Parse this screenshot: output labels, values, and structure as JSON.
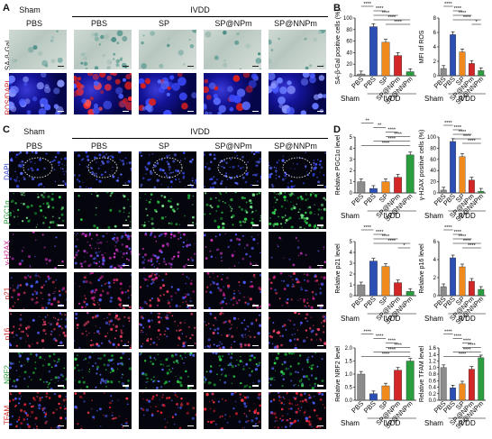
{
  "panels": {
    "A": "A",
    "B": "B",
    "C": "C",
    "D": "D"
  },
  "panelA": {
    "group_sham": "Sham",
    "group_ivdd": "IVDD",
    "columns": [
      "PBS",
      "PBS",
      "SP",
      "SP@NPm",
      "SP@NNPm"
    ],
    "rows": [
      "SA-β-Gal",
      "ROS/DAPI"
    ]
  },
  "panelC": {
    "group_sham": "Sham",
    "group_ivdd": "IVDD",
    "columns": [
      "PBS",
      "PBS",
      "SP",
      "SP@NPm",
      "SP@NNPm"
    ],
    "rows": [
      "DAPI",
      "PGC1α",
      "γ-H2AX",
      "p21",
      "p16",
      "NRF2",
      "TFAM"
    ]
  },
  "colors": {
    "sham": "#8c8c8c",
    "pbs": "#2c4fb5",
    "sp": "#f08a1c",
    "spnpm": "#d32626",
    "spnnpm": "#2a9d3f"
  },
  "chart_data": [
    {
      "type": "bar",
      "panel": "B",
      "categories": [
        "PBS",
        "PBS",
        "SP",
        "SP@NPm",
        "SP@NNPm"
      ],
      "values": [
        3,
        85,
        58,
        35,
        7
      ],
      "ylabel": "SA-β-Gal positive cells (%)",
      "ylim": [
        0,
        100
      ],
      "yticks": [
        "0",
        "20",
        "40",
        "60",
        "80",
        "100"
      ],
      "group_sham": "Sham",
      "group_ivdd": "IVDD",
      "sig": [
        "****",
        "****",
        "****",
        "****",
        "****"
      ]
    },
    {
      "type": "bar",
      "panel": "B",
      "categories": [
        "PBS",
        "PBS",
        "SP",
        "SP@NPm",
        "SP@NNPm"
      ],
      "values": [
        1,
        5.7,
        3.3,
        1.7,
        0.7
      ],
      "ylabel": "MFI of ROS",
      "ylim": [
        0,
        8
      ],
      "yticks": [
        "0",
        "2",
        "4",
        "6",
        "8"
      ],
      "group_sham": "Sham",
      "group_ivdd": "IVDD",
      "sig": [
        "****",
        "****",
        "****",
        "****",
        "*"
      ]
    },
    {
      "type": "bar",
      "panel": "D",
      "categories": [
        "PBS",
        "PBS",
        "SP",
        "SP@NPm",
        "SP@NNPm"
      ],
      "values": [
        1,
        0.4,
        1.0,
        1.4,
        3.4
      ],
      "ylabel": "Relative PGC1α level",
      "ylim": [
        0,
        5
      ],
      "yticks": [
        "0",
        "1",
        "2",
        "3",
        "4",
        "5"
      ],
      "group_sham": "Sham",
      "group_ivdd": "IVDD",
      "sig": [
        "**",
        "**",
        "****",
        "****",
        "****",
        "****"
      ]
    },
    {
      "type": "bar",
      "panel": "D",
      "categories": [
        "PBS",
        "PBS",
        "SP",
        "SP@NPm",
        "SP@NNPm"
      ],
      "values": [
        5,
        92,
        65,
        23,
        3
      ],
      "ylabel": "γ-H2AX positive cells (%)",
      "ylim": [
        0,
        100
      ],
      "yticks": [
        "0",
        "20",
        "40",
        "60",
        "80",
        "100"
      ],
      "group_sham": "Sham",
      "group_ivdd": "IVDD",
      "sig": [
        "****",
        "****",
        "****",
        "****",
        "****"
      ]
    },
    {
      "type": "bar",
      "panel": "D",
      "categories": [
        "PBS",
        "PBS",
        "SP",
        "SP@NPm",
        "SP@NNPm"
      ],
      "values": [
        1,
        3.2,
        2.7,
        1.2,
        0.4
      ],
      "ylabel": "Relative p21 level",
      "ylim": [
        0,
        5
      ],
      "yticks": [
        "0",
        "1",
        "2",
        "3",
        "4",
        "5"
      ],
      "group_sham": "Sham",
      "group_ivdd": "IVDD",
      "sig": [
        "****",
        "****",
        "****",
        "****",
        "*"
      ]
    },
    {
      "type": "bar",
      "panel": "D",
      "categories": [
        "PBS",
        "PBS",
        "SP",
        "SP@NPm",
        "SP@NNPm"
      ],
      "values": [
        1,
        4.2,
        3.2,
        1.6,
        0.7
      ],
      "ylabel": "Relative p16 level",
      "ylim": [
        0,
        6
      ],
      "yticks": [
        "0",
        "2",
        "4",
        "6"
      ],
      "group_sham": "Sham",
      "group_ivdd": "IVDD",
      "sig": [
        "****",
        "****",
        "****",
        "****",
        "****"
      ]
    },
    {
      "type": "bar",
      "panel": "D",
      "categories": [
        "PBS",
        "PBS",
        "SP",
        "SP@NPm",
        "SP@NNPm"
      ],
      "values": [
        1,
        0.25,
        0.55,
        1.15,
        1.5
      ],
      "ylabel": "Relative NRF2 level",
      "ylim": [
        0,
        2
      ],
      "yticks": [
        "0.0",
        "0.5",
        "1.0",
        "1.5",
        "2.0"
      ],
      "group_sham": "Sham",
      "group_ivdd": "IVDD",
      "sig": [
        "****",
        "****",
        "****",
        "****",
        "****",
        "****"
      ]
    },
    {
      "type": "bar",
      "panel": "D",
      "categories": [
        "PBS",
        "PBS",
        "SP",
        "SP@NPm",
        "SP@NNPm"
      ],
      "values": [
        1,
        0.38,
        0.5,
        0.95,
        1.3
      ],
      "ylabel": "Relative TFAM level",
      "ylim": [
        0,
        1.6
      ],
      "yticks": [
        "0.0",
        "0.2",
        "0.4",
        "0.6",
        "0.8",
        "1.0",
        "1.2",
        "1.4",
        "1.6"
      ],
      "group_sham": "Sham",
      "group_ivdd": "IVDD",
      "sig": [
        "****",
        "****",
        "****",
        "****",
        "****",
        "****"
      ]
    }
  ]
}
